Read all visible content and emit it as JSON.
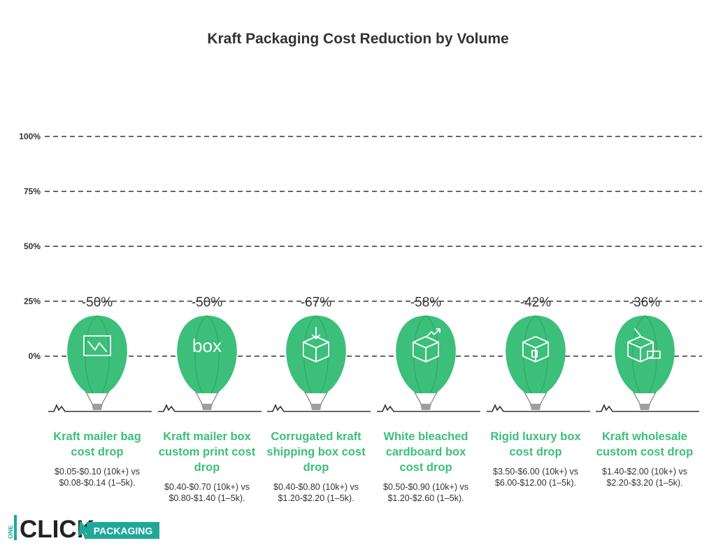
{
  "title": "Kraft Packaging Cost Reduction by Volume",
  "chart_data": {
    "type": "infographic",
    "title": "Kraft Packaging Cost Reduction by Volume",
    "y_ticks": [
      "100%",
      "75%",
      "50%",
      "25%",
      "0%"
    ],
    "items": [
      {
        "name": "Kraft mailer bag cost drop",
        "value_label": "-50%",
        "value": -50,
        "desc": "$0.05-$0.10 (10k+) vs $0.08-$0.14 (1–5k).",
        "icon": "envelope-icon"
      },
      {
        "name": "Kraft mailer box custom print cost drop",
        "value_label": "-50%",
        "value": -50,
        "desc": "$0.40-$0.70 (10k+) vs $0.80-$1.40 (1–5k).",
        "icon": "box-text-icon"
      },
      {
        "name": "Corrugated kraft shipping box cost drop",
        "value_label": "-67%",
        "value": -67,
        "desc": "$0.40-$0.80 (10k+) vs $1.20-$2.20 (1–5k).",
        "icon": "box-download-icon"
      },
      {
        "name": "White bleached cardboard box cost drop",
        "value_label": "-58%",
        "value": -58,
        "desc": "$0.50-$0.90 (10k+) vs $1.20-$2.60 (1–5k).",
        "icon": "box-growth-icon"
      },
      {
        "name": "Rigid luxury box cost drop",
        "value_label": "-42%",
        "value": -42,
        "desc": "$3.50-$6.00 (10k+) vs $6.00-$12.00 (1–5k).",
        "icon": "luxury-box-icon"
      },
      {
        "name": "Kraft wholesale custom cost drop",
        "value_label": "-36%",
        "value": -36,
        "desc": "$1.40-$2.00 (10k+) vs $2.20-$3.20 (1–5k).",
        "icon": "wholesale-boxes-icon"
      }
    ],
    "colors": {
      "balloon": "#3cbf7a",
      "balloon_dark": "#2fa866",
      "basket": "#9e9e9e",
      "text": "#333333",
      "grid": "#333333"
    }
  },
  "logo": {
    "main": "CLICK",
    "vertical": "ONE",
    "tagline": "PACKAGING",
    "accent": "#1fa89a"
  }
}
